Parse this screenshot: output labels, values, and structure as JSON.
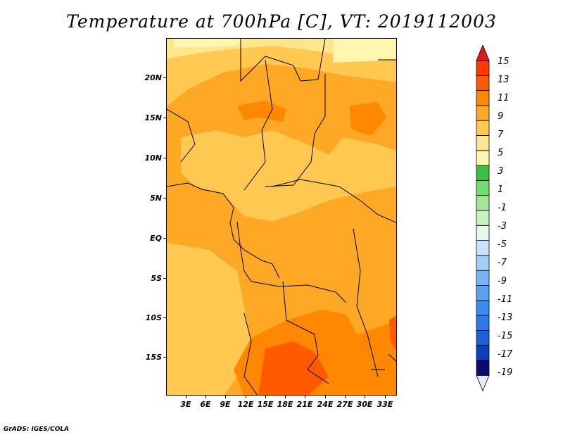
{
  "title": "Temperature at 700hPa [C], VT: 2019112003",
  "credit": "GrADS: IGES/COLA",
  "lat_labels": [
    "20N",
    "15N",
    "10N",
    "5N",
    "EQ",
    "5S",
    "10S",
    "15S"
  ],
  "lon_labels": [
    "3E",
    "6E",
    "9E",
    "12E",
    "15E",
    "18E",
    "21E",
    "24E",
    "27E",
    "30E",
    "33E"
  ],
  "colorbar": {
    "labels": [
      "15",
      "13",
      "11",
      "9",
      "7",
      "5",
      "3",
      "1",
      "-1",
      "-3",
      "-5",
      "-7",
      "-9",
      "-11",
      "-13",
      "-15",
      "-17",
      "-19"
    ],
    "colors": [
      "#e8e8ff",
      "#0a0a70",
      "#1040b8",
      "#1e60d8",
      "#2e78e8",
      "#3c8cf0",
      "#5aa0f0",
      "#78b4f4",
      "#a0cef8",
      "#c8e4fc",
      "#e6f8ea",
      "#c6f2c0",
      "#a0e898",
      "#70dc6c",
      "#38c040",
      "#fff6b0",
      "#ffe68c",
      "#ffc850",
      "#ffa826",
      "#ff8800",
      "#ff5a00",
      "#ff3a00",
      "#e01a1a"
    ]
  },
  "map_colors": {
    "c3_5": "#fff6b0",
    "c5_7": "#ffe68c",
    "c7_9": "#ffc850",
    "c9_11": "#ffa826",
    "c11_13": "#ff8800",
    "c13_15": "#ff5a00"
  }
}
